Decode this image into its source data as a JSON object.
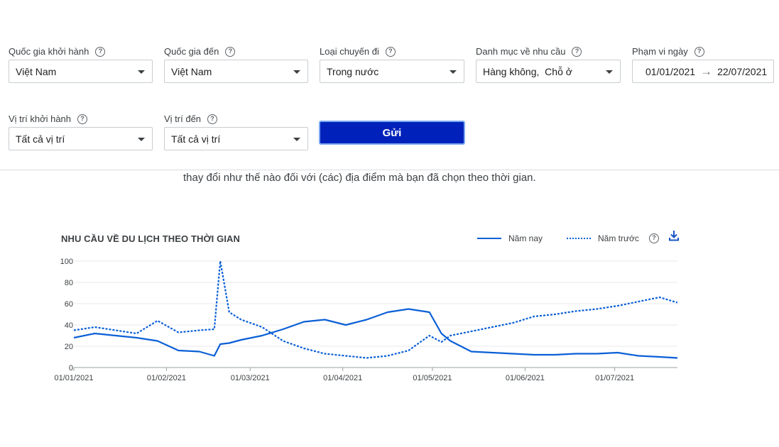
{
  "filters": {
    "departure_country": {
      "label": "Quốc gia khởi hành",
      "value": "Việt Nam"
    },
    "destination_country": {
      "label": "Quốc gia đến",
      "value": "Việt Nam"
    },
    "trip_type": {
      "label": "Loại chuyến đi",
      "value": "Trong nước"
    },
    "demand_category": {
      "label": "Danh mục về nhu cầu",
      "value": "Hàng không,  Chỗ ở"
    },
    "date_range": {
      "label": "Phạm vi ngày",
      "start": "01/01/2021",
      "end": "22/07/2021"
    },
    "departure_location": {
      "label": "Vị trí khởi hành",
      "value": "Tất cả vị trí"
    },
    "destination_location": {
      "label": "Vị trí đến",
      "value": "Tất cả vị trí"
    },
    "help_glyph": "?"
  },
  "submit_label": "Gửi",
  "description": "thay đổi như thế nào đối với (các) địa điểm mà bạn đã chọn theo thời gian.",
  "chart_data": {
    "type": "line",
    "title": "NHU CẦU VỀ DU LỊCH THEO THỜI GIAN",
    "legend_position": "top-right",
    "grid": true,
    "ylim": [
      0,
      100
    ],
    "yticks": [
      0,
      20,
      40,
      60,
      80,
      100
    ],
    "x_range": [
      "01/01/2021",
      "22/07/2021"
    ],
    "x_ticks": [
      "01/01/2021",
      "01/02/2021",
      "01/03/2021",
      "01/04/2021",
      "01/05/2021",
      "01/06/2021",
      "01/07/2021"
    ],
    "x": [
      "01/01/2021",
      "08/01/2021",
      "15/01/2021",
      "22/01/2021",
      "29/01/2021",
      "05/02/2021",
      "12/02/2021",
      "17/02/2021",
      "19/02/2021",
      "22/02/2021",
      "26/02/2021",
      "05/03/2021",
      "12/03/2021",
      "19/03/2021",
      "26/03/2021",
      "02/04/2021",
      "09/04/2021",
      "16/04/2021",
      "23/04/2021",
      "30/04/2021",
      "04/05/2021",
      "07/05/2021",
      "14/05/2021",
      "21/05/2021",
      "28/05/2021",
      "04/06/2021",
      "11/06/2021",
      "18/06/2021",
      "25/06/2021",
      "02/07/2021",
      "09/07/2021",
      "16/07/2021",
      "22/07/2021"
    ],
    "series": [
      {
        "name": "Năm nay",
        "style": "solid",
        "values": [
          28,
          32,
          30,
          28,
          25,
          16,
          15,
          11,
          22,
          23,
          26,
          30,
          36,
          43,
          45,
          40,
          45,
          52,
          55,
          52,
          32,
          25,
          15,
          14,
          13,
          12,
          12,
          13,
          13,
          14,
          11,
          10,
          9
        ]
      },
      {
        "name": "Năm trước",
        "style": "dotted",
        "values": [
          35,
          38,
          35,
          32,
          44,
          33,
          35,
          36,
          100,
          52,
          45,
          38,
          25,
          18,
          13,
          11,
          9,
          11,
          16,
          30,
          24,
          30,
          34,
          38,
          42,
          48,
          50,
          53,
          55,
          58,
          62,
          66,
          61
        ]
      }
    ],
    "color": "#0a5fd6"
  },
  "colors": {
    "accent": "#0022bb",
    "line": "#0a5fd6"
  }
}
